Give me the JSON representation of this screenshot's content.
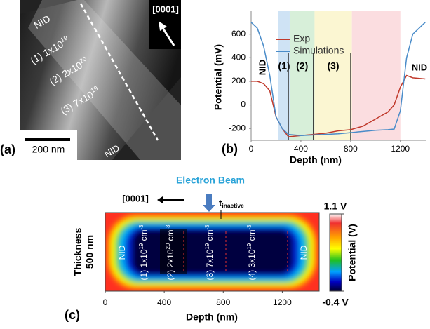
{
  "panel_a": {
    "label": "(a)",
    "labels": [
      {
        "parts": [
          "NID"
        ]
      },
      {
        "parts": [
          "(1) 1x10",
          "19"
        ]
      },
      {
        "parts": [
          "(2) 2x10",
          "20"
        ]
      },
      {
        "parts": [
          "(3) 7x10",
          "19"
        ]
      }
    ],
    "orientation": "[0001]",
    "scale_bar": "200 nm",
    "bottom_label": "NID"
  },
  "chart_data": [
    {
      "type": "line",
      "label": "(b)",
      "xlabel": "Depth (nm)",
      "ylabel": "Potential (mV)",
      "x": [
        0,
        50,
        100,
        150,
        200,
        250,
        300,
        400,
        500,
        600,
        700,
        800,
        900,
        1000,
        1100,
        1150,
        1200,
        1250,
        1300,
        1400
      ],
      "series": [
        {
          "name": "Exp",
          "color": "#c0392b",
          "values": [
            200,
            200,
            180,
            120,
            -100,
            -200,
            -270,
            -260,
            -250,
            -240,
            -220,
            -210,
            -180,
            -120,
            -60,
            0,
            150,
            250,
            230,
            220
          ]
        },
        {
          "name": "Simulations",
          "color": "#4a8cc9",
          "values": [
            700,
            650,
            500,
            250,
            -100,
            -200,
            -250,
            -260,
            -255,
            -250,
            -245,
            -235,
            -225,
            -215,
            -210,
            -205,
            -50,
            400,
            600,
            700
          ]
        }
      ],
      "xlim": [
        0,
        1410
      ],
      "ylim": [
        -300,
        800
      ],
      "xticks": [
        0,
        400,
        800,
        1200
      ],
      "yticks": [
        -200,
        0,
        200,
        400,
        600
      ],
      "regions": [
        {
          "from": 220,
          "to": 310,
          "color": "#cfe3f5",
          "label": "(1)"
        },
        {
          "from": 310,
          "to": 510,
          "color": "#d7efd9",
          "label": "(2)"
        },
        {
          "from": 510,
          "to": 810,
          "color": "#fbf6d2",
          "label": "(3)"
        },
        {
          "from": 810,
          "to": 1200,
          "color": "#fbdde0"
        }
      ],
      "dividers": [
        300,
        500,
        800
      ],
      "annotations": [
        "NID",
        "NID"
      ]
    },
    {
      "type": "heatmap",
      "label": "(c)",
      "xlabel": "Depth (nm)",
      "ylabel": [
        "Thickness",
        "500 nm"
      ],
      "xlim": [
        0,
        1450
      ],
      "xticks": [
        0,
        400,
        800,
        1200
      ],
      "beam_label": "Electron Beam",
      "orientation": "[0001]",
      "inactive": [
        "t",
        "inactive"
      ],
      "region_labels": [
        {
          "parts": [
            "(1) 1x10",
            "19",
            " cm",
            "-3"
          ]
        },
        {
          "parts": [
            "(2) 2x10",
            "20",
            " cm",
            "-3"
          ]
        },
        {
          "parts": [
            "(3) 7x10",
            "19",
            " cm",
            "-3"
          ]
        },
        {
          "parts": [
            "(4) 3x10",
            "19",
            " cm",
            "-3"
          ]
        }
      ],
      "edge_labels": [
        "NID",
        "NID"
      ],
      "colorbar": {
        "title": "Potential (V)",
        "range": [
          {
            "value": -0.4,
            "label": "-0.4 V"
          },
          {
            "value": 1.1,
            "label": "1.1 V"
          }
        ]
      }
    }
  ]
}
